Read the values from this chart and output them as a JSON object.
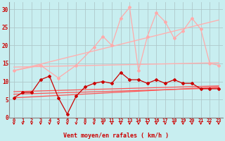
{
  "background_color": "#c8eef0",
  "grid_color": "#b0c8ca",
  "xlabel": "Vent moyen/en rafales ( km/h )",
  "x_ticks": [
    0,
    1,
    2,
    3,
    4,
    5,
    6,
    7,
    8,
    9,
    10,
    11,
    12,
    13,
    14,
    15,
    16,
    17,
    18,
    19,
    20,
    21,
    22,
    23
  ],
  "ylim": [
    0,
    32
  ],
  "yticks": [
    0,
    5,
    10,
    15,
    20,
    25,
    30
  ],
  "series": [
    {
      "color": "#ffb0b0",
      "linewidth": 1.0,
      "marker": null,
      "data": [
        [
          0,
          13.0
        ],
        [
          23,
          27.0
        ]
      ]
    },
    {
      "color": "#ffb0b0",
      "linewidth": 1.0,
      "marker": null,
      "data": [
        [
          0,
          14.0
        ],
        [
          23,
          15.2
        ]
      ]
    },
    {
      "color": "#ffaaaa",
      "linewidth": 0.9,
      "marker": "D",
      "markersize": 2.0,
      "data": [
        [
          0,
          13.0
        ],
        [
          3,
          14.5
        ],
        [
          5,
          11.0
        ],
        [
          7,
          14.5
        ],
        [
          9,
          19.5
        ],
        [
          10,
          22.5
        ],
        [
          11,
          20.0
        ],
        [
          12,
          27.5
        ],
        [
          13,
          30.5
        ],
        [
          14,
          13.0
        ],
        [
          15,
          22.5
        ],
        [
          16,
          29.0
        ],
        [
          17,
          26.5
        ],
        [
          18,
          22.0
        ],
        [
          19,
          24.0
        ],
        [
          20,
          27.5
        ],
        [
          21,
          24.5
        ],
        [
          22,
          15.0
        ],
        [
          23,
          14.5
        ]
      ]
    },
    {
      "color": "#ff5555",
      "linewidth": 0.9,
      "marker": null,
      "data": [
        [
          0,
          5.5
        ],
        [
          23,
          8.5
        ]
      ]
    },
    {
      "color": "#ff5555",
      "linewidth": 0.9,
      "marker": null,
      "data": [
        [
          0,
          6.5
        ],
        [
          23,
          8.2
        ]
      ]
    },
    {
      "color": "#ff5555",
      "linewidth": 0.9,
      "marker": null,
      "data": [
        [
          0,
          7.2
        ],
        [
          23,
          8.8
        ]
      ]
    },
    {
      "color": "#cc0000",
      "linewidth": 0.9,
      "marker": "D",
      "markersize": 2.0,
      "data": [
        [
          0,
          5.5
        ],
        [
          1,
          7.0
        ],
        [
          2,
          7.0
        ],
        [
          3,
          10.5
        ],
        [
          4,
          11.5
        ],
        [
          5,
          5.5
        ],
        [
          6,
          1.0
        ],
        [
          7,
          6.0
        ],
        [
          8,
          8.5
        ],
        [
          9,
          9.5
        ],
        [
          10,
          10.0
        ],
        [
          11,
          9.5
        ],
        [
          12,
          12.5
        ],
        [
          13,
          10.5
        ],
        [
          14,
          10.5
        ],
        [
          15,
          9.5
        ],
        [
          16,
          10.5
        ],
        [
          17,
          9.5
        ],
        [
          18,
          10.5
        ],
        [
          19,
          9.5
        ],
        [
          20,
          9.5
        ],
        [
          21,
          8.0
        ],
        [
          22,
          8.0
        ],
        [
          23,
          8.0
        ]
      ]
    }
  ],
  "tick_label_color": "#cc0000",
  "axis_label_color": "#cc0000"
}
